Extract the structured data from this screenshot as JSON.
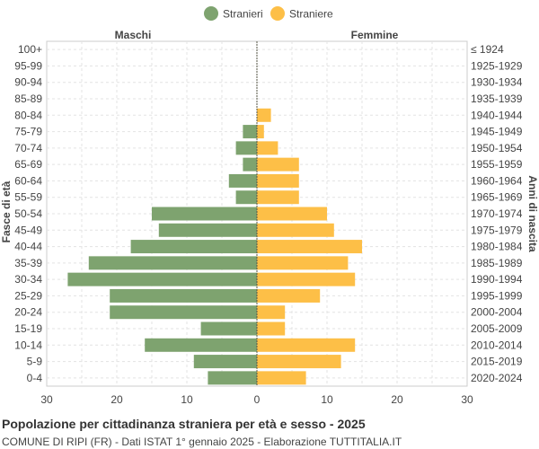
{
  "chart_data": {
    "type": "bar",
    "orientation": "horizontal-population-pyramid",
    "title": "Popolazione per cittadinanza straniera per età e sesso - 2025",
    "subtitle": "COMUNE DI RIPI (FR) - Dati ISTAT 1° gennaio 2025 - Elaborazione TUTTITALIA.IT",
    "left_label": "Maschi",
    "right_label": "Femmine",
    "ylabel_left": "Fasce di età",
    "ylabel_right": "Anni di nascita",
    "xlim": [
      -30,
      30
    ],
    "xticks": [
      30,
      20,
      10,
      0,
      10,
      20,
      30
    ],
    "xtick_values": [
      -30,
      -20,
      -10,
      0,
      10,
      20,
      30
    ],
    "grid": true,
    "legend_position": "top-center",
    "categories": [
      "100+",
      "95-99",
      "90-94",
      "85-89",
      "80-84",
      "75-79",
      "70-74",
      "65-69",
      "60-64",
      "55-59",
      "50-54",
      "45-49",
      "40-44",
      "35-39",
      "30-34",
      "25-29",
      "20-24",
      "15-19",
      "10-14",
      "5-9",
      "0-4"
    ],
    "birth_years": [
      "≤ 1924",
      "1925-1929",
      "1930-1934",
      "1935-1939",
      "1940-1944",
      "1945-1949",
      "1950-1954",
      "1955-1959",
      "1960-1964",
      "1965-1969",
      "1970-1974",
      "1975-1979",
      "1980-1984",
      "1985-1989",
      "1990-1994",
      "1995-1999",
      "2000-2004",
      "2005-2009",
      "2010-2014",
      "2015-2019",
      "2020-2024"
    ],
    "series": [
      {
        "name": "Stranieri",
        "color": "#7ea36f",
        "values": [
          0,
          0,
          0,
          0,
          0,
          2,
          3,
          2,
          4,
          3,
          15,
          14,
          18,
          24,
          27,
          21,
          21,
          8,
          16,
          9,
          7
        ]
      },
      {
        "name": "Straniere",
        "color": "#fdbf47",
        "values": [
          0,
          0,
          0,
          0,
          2,
          1,
          3,
          6,
          6,
          6,
          10,
          11,
          15,
          13,
          14,
          9,
          4,
          4,
          14,
          12,
          7
        ]
      }
    ]
  }
}
